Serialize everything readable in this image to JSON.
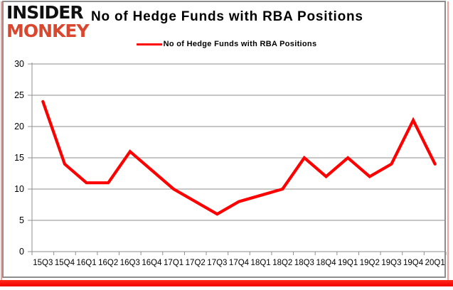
{
  "logo": {
    "line1": "INSIDER",
    "line2": "MONKEY"
  },
  "title": "No of Hedge Funds with RBA Positions",
  "legend": {
    "label": "No of Hedge Funds with RBA Positions",
    "color": "#ff0000"
  },
  "colors": {
    "line": "#ff0000",
    "grid": "#8f8f8f",
    "frame": "#8e8e8e",
    "logo_red": "#d9482e",
    "edge_pink": "#f2a09a",
    "bottom_bar_red": "#f40000",
    "text": "#000000"
  },
  "chart_data": {
    "type": "line",
    "title": "No of Hedge Funds with RBA Positions",
    "categories": [
      "15Q3",
      "15Q4",
      "16Q1",
      "16Q2",
      "16Q3",
      "16Q4",
      "17Q1",
      "17Q2",
      "17Q3",
      "17Q4",
      "18Q1",
      "18Q2",
      "18Q3",
      "18Q4",
      "19Q1",
      "19Q2",
      "19Q3",
      "19Q4",
      "20Q1"
    ],
    "series": [
      {
        "name": "No of Hedge Funds with RBA Positions",
        "color": "#ff0000",
        "values": [
          24,
          14,
          11,
          11,
          16,
          13,
          10,
          8,
          6,
          8,
          9,
          10,
          15,
          12,
          15,
          12,
          14,
          21,
          14
        ]
      }
    ],
    "xlabel": "",
    "ylabel": "",
    "ylim": [
      0,
      30
    ],
    "yticks": [
      0,
      5,
      10,
      15,
      20,
      25,
      30
    ],
    "grid": true,
    "legend_position": "top-center"
  }
}
